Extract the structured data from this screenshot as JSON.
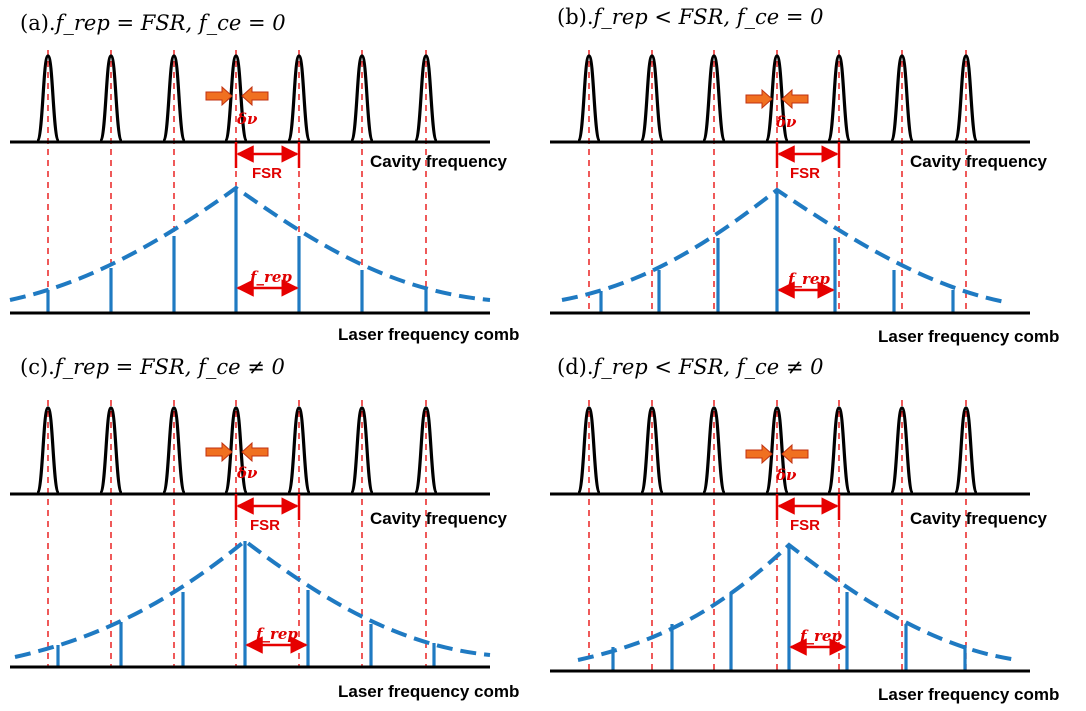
{
  "panels": [
    {
      "title": "(a).",
      "condition": "f_rep = FSR, f_ce = 0",
      "cavity_label": "Cavity frequency",
      "comb_label": "Laser frequency comb",
      "fsr_label": "FSR",
      "frep_label": "f_rep",
      "dnu_label": "δν"
    },
    {
      "title": "(b).",
      "condition": "f_rep < FSR, f_ce = 0",
      "cavity_label": "Cavity frequency",
      "comb_label": "Laser frequency comb",
      "fsr_label": "FSR",
      "frep_label": "f_rep",
      "dnu_label": "δν"
    },
    {
      "title": "(c).",
      "condition": "f_rep = FSR, f_ce ≠ 0",
      "cavity_label": "Cavity frequency",
      "comb_label": "Laser frequency comb",
      "fsr_label": "FSR",
      "frep_label": "f_rep",
      "dnu_label": "δν"
    },
    {
      "title": "(d).",
      "condition": "f_rep < FSR, f_ce ≠ 0",
      "cavity_label": "Cavity frequency",
      "comb_label": "Laser frequency comb",
      "fsr_label": "FSR",
      "frep_label": "f_rep",
      "dnu_label": "δν"
    }
  ],
  "colors": {
    "cavity": "#000000",
    "comb": "#1f7ac2",
    "guide": "#e60000",
    "arrow_fill": "#f07020"
  }
}
